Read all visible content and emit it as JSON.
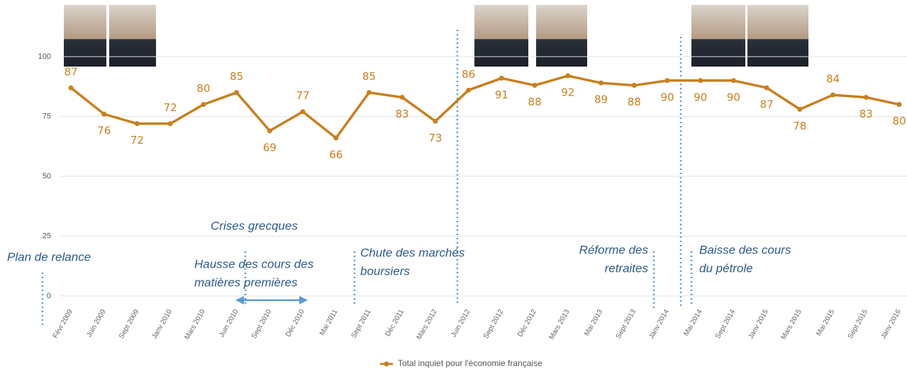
{
  "chart_data": {
    "type": "line",
    "categories": [
      "Févr 2009",
      "Juin 2009",
      "Sept 2009",
      "Janv 2010",
      "Mars 2010",
      "Juin 2010",
      "Sept 2010",
      "Déc 2010",
      "Mai 2011",
      "Sept 2011",
      "Déc 2011",
      "Mars 2012",
      "Juin 2012",
      "Sept 2012",
      "Déc 2012",
      "Mars 2013",
      "Mai 2013",
      "Sept 2013",
      "Janv 2014",
      "Mai 2014",
      "Sept 2014",
      "Janv 2015",
      "Mars 2015",
      "Mai 2015",
      "Sept 2015",
      "Janv 2016"
    ],
    "series": [
      {
        "name": "Total inquiet pour l'économie française",
        "color": "#c8801f",
        "values": [
          87,
          76,
          72,
          72,
          80,
          85,
          69,
          77,
          66,
          85,
          83,
          73,
          86,
          91,
          88,
          92,
          89,
          88,
          90,
          90,
          90,
          87,
          78,
          84,
          83,
          80
        ]
      }
    ],
    "ylim": [
      0,
      100
    ],
    "yticks": [
      0,
      25,
      50,
      75,
      100
    ],
    "grid": true,
    "annotations": [
      {
        "lines": [
          "Plan de relance"
        ]
      },
      {
        "lines": [
          "Crises grecques"
        ]
      },
      {
        "lines": [
          "Hausse des cours des",
          "matières premières"
        ]
      },
      {
        "lines": [
          "Chute des marchés",
          "boursiers"
        ]
      },
      {
        "lines": [
          "Réforme des",
          "retraites"
        ]
      },
      {
        "lines": [
          "Baisse des cours",
          "du pétrole"
        ]
      }
    ]
  }
}
